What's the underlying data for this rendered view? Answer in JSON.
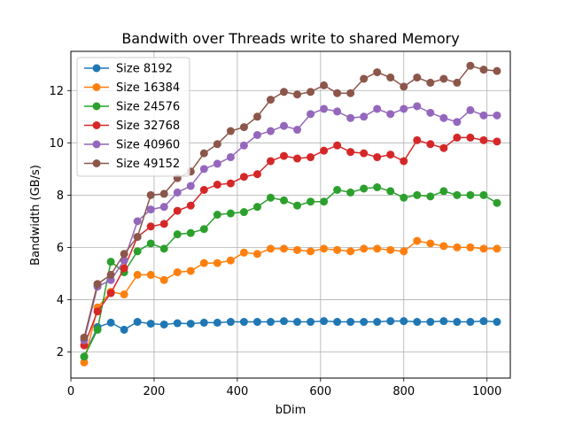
{
  "chart_data": {
    "type": "line",
    "title": "Bandwith over Threads write to shared Memory",
    "xlabel": "bDim",
    "ylabel": "Bandwidth (GB/s)",
    "xlim": [
      0,
      1056
    ],
    "ylim": [
      1,
      13.5
    ],
    "xticks": [
      0,
      200,
      400,
      600,
      800,
      1000
    ],
    "yticks": [
      2,
      4,
      6,
      8,
      10,
      12
    ],
    "grid": true,
    "legend_position": "top-left",
    "x": [
      32,
      64,
      96,
      128,
      160,
      192,
      224,
      256,
      288,
      320,
      352,
      384,
      416,
      448,
      480,
      512,
      544,
      576,
      608,
      640,
      672,
      704,
      736,
      768,
      800,
      832,
      864,
      896,
      928,
      960,
      992,
      1024
    ],
    "series": [
      {
        "name": "Size 8192",
        "color": "#1f77b4",
        "values": [
          1.82,
          2.95,
          3.12,
          2.85,
          3.15,
          3.08,
          3.05,
          3.1,
          3.08,
          3.12,
          3.12,
          3.15,
          3.15,
          3.15,
          3.15,
          3.18,
          3.15,
          3.15,
          3.18,
          3.15,
          3.15,
          3.15,
          3.15,
          3.18,
          3.18,
          3.15,
          3.15,
          3.18,
          3.15,
          3.15,
          3.18,
          3.15
        ]
      },
      {
        "name": "Size 16384",
        "color": "#ff7f0e",
        "values": [
          1.6,
          3.7,
          4.3,
          4.2,
          4.95,
          4.95,
          4.75,
          5.05,
          5.1,
          5.4,
          5.4,
          5.5,
          5.8,
          5.75,
          5.95,
          5.95,
          5.9,
          5.85,
          5.95,
          5.9,
          5.85,
          5.95,
          5.95,
          5.9,
          5.85,
          6.25,
          6.15,
          6.05,
          6.0,
          6.0,
          5.95,
          5.95
        ]
      },
      {
        "name": "Size 24576",
        "color": "#2ca02c",
        "values": [
          1.82,
          2.85,
          5.45,
          5.05,
          5.85,
          6.15,
          5.95,
          6.5,
          6.55,
          6.7,
          7.25,
          7.3,
          7.35,
          7.55,
          7.9,
          7.8,
          7.6,
          7.75,
          7.75,
          8.2,
          8.1,
          8.25,
          8.3,
          8.15,
          7.9,
          8.0,
          7.95,
          8.15,
          8.0,
          8.0,
          8.0,
          7.7
        ]
      },
      {
        "name": "Size 32768",
        "color": "#d62728",
        "values": [
          2.25,
          3.55,
          4.25,
          5.2,
          6.4,
          6.8,
          6.9,
          7.4,
          7.6,
          8.2,
          8.4,
          8.45,
          8.7,
          8.8,
          9.3,
          9.5,
          9.4,
          9.45,
          9.7,
          9.9,
          9.65,
          9.6,
          9.45,
          9.55,
          9.3,
          10.1,
          9.95,
          9.8,
          10.2,
          10.2,
          10.1,
          10.05
        ]
      },
      {
        "name": "Size 40960",
        "color": "#9467bd",
        "values": [
          2.45,
          4.5,
          4.75,
          5.5,
          7.0,
          7.45,
          7.55,
          8.1,
          8.35,
          9.0,
          9.2,
          9.45,
          9.9,
          10.3,
          10.45,
          10.65,
          10.5,
          11.1,
          11.3,
          11.2,
          10.95,
          11.0,
          11.3,
          11.1,
          11.3,
          11.4,
          11.15,
          10.95,
          10.8,
          11.25,
          11.05,
          11.05
        ]
      },
      {
        "name": "Size 49152",
        "color": "#8c564b",
        "values": [
          2.55,
          4.6,
          4.95,
          5.75,
          6.4,
          8.0,
          8.05,
          8.65,
          8.9,
          9.6,
          9.95,
          10.45,
          10.6,
          11.0,
          11.65,
          11.95,
          11.85,
          11.95,
          12.2,
          11.9,
          11.9,
          12.45,
          12.7,
          12.5,
          12.15,
          12.5,
          12.3,
          12.45,
          12.3,
          12.95,
          12.8,
          12.75
        ]
      }
    ]
  }
}
